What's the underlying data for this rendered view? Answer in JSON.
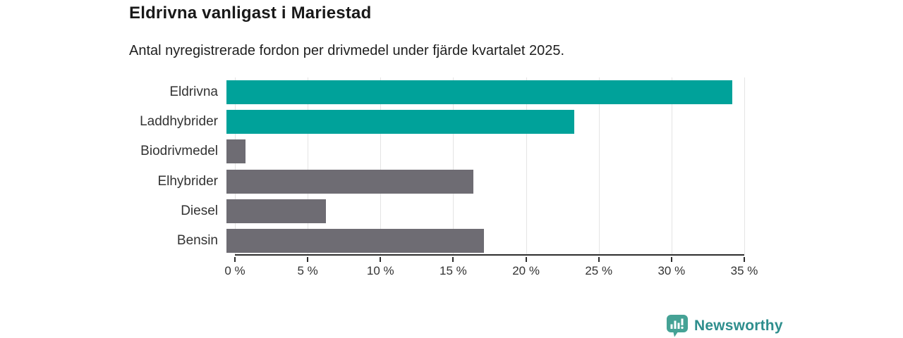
{
  "header": {
    "title": "Eldrivna vanligast i Mariestad",
    "subtitle": "Antal nyregistrerade fordon per drivmedel under fjärde kvartalet 2025."
  },
  "chart_data": {
    "type": "bar",
    "orientation": "horizontal",
    "categories": [
      "Eldrivna",
      "Laddhybrider",
      "Biodrivmedel",
      "Elhybrider",
      "Diesel",
      "Bensin"
    ],
    "values": [
      34.2,
      23.5,
      1.3,
      16.7,
      6.7,
      17.4
    ],
    "unit": "%",
    "bar_colors": [
      "#00a29a",
      "#00a29a",
      "#6e6c73",
      "#6e6c73",
      "#6e6c73",
      "#6e6c73"
    ],
    "xlim": [
      0,
      35
    ],
    "x_tick_labels": [
      "0 %",
      "5 %",
      "10 %",
      "15 %",
      "20 %",
      "25 %",
      "30 %",
      "35 %"
    ],
    "grid": true,
    "legend": false,
    "title": "Eldrivna vanligast i Mariestad",
    "xlabel": "",
    "ylabel": ""
  },
  "branding": {
    "logo_text": "Newsworthy",
    "logo_icon": "bar-chart-speech-bubble-icon",
    "text_color": "#2e8e8d",
    "icon_color": "#45a295"
  },
  "colors": {
    "accent_teal": "#00a29a",
    "neutral_gray": "#6e6c73",
    "gridline": "#e4e4e4",
    "axis": "#2d2d2d"
  }
}
